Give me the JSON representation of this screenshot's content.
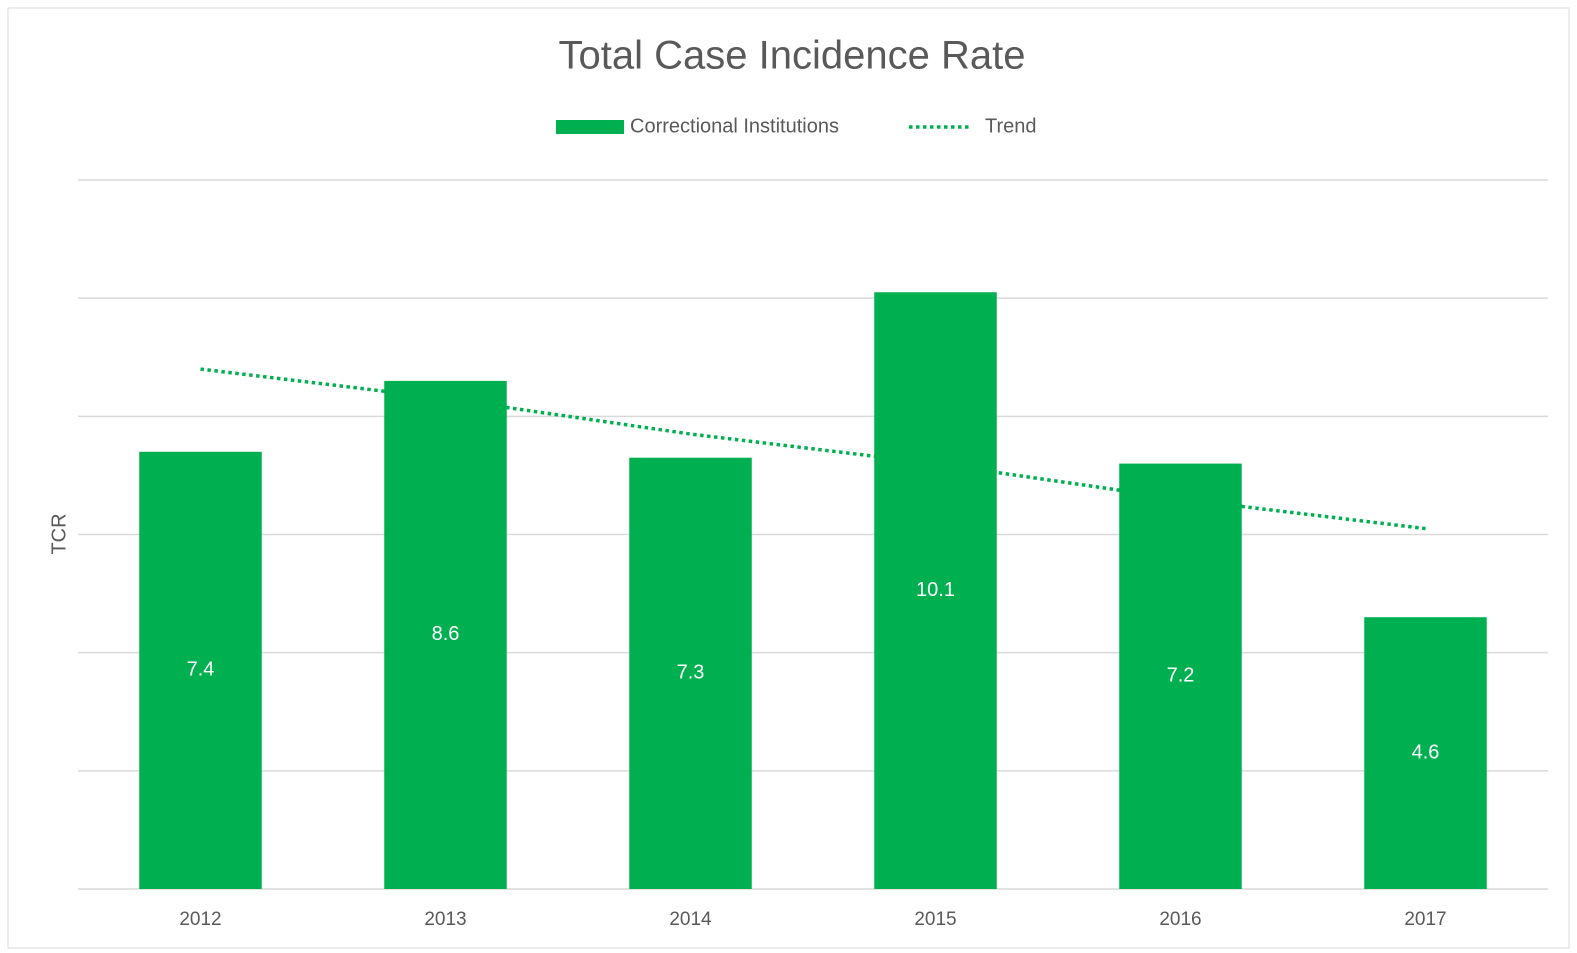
{
  "chart_data": {
    "type": "bar",
    "title": "Total Case Incidence Rate",
    "y_label": "TCR",
    "categories": [
      "2012",
      "2013",
      "2014",
      "2015",
      "2016",
      "2017"
    ],
    "series": [
      {
        "name": "Correctional Institutions",
        "color": "#00b050",
        "values": [
          7.4,
          8.6,
          7.3,
          10.1,
          7.2,
          4.6
        ]
      },
      {
        "name": "Trend",
        "color": "#00b050",
        "type": "line",
        "values": [
          8.8,
          8.3,
          7.7,
          7.2,
          6.6,
          6.1
        ]
      }
    ],
    "ylim": [
      0,
      12
    ],
    "yticks": [
      0,
      2,
      4,
      6,
      8,
      10,
      12
    ],
    "grid": true,
    "legend": "top"
  }
}
